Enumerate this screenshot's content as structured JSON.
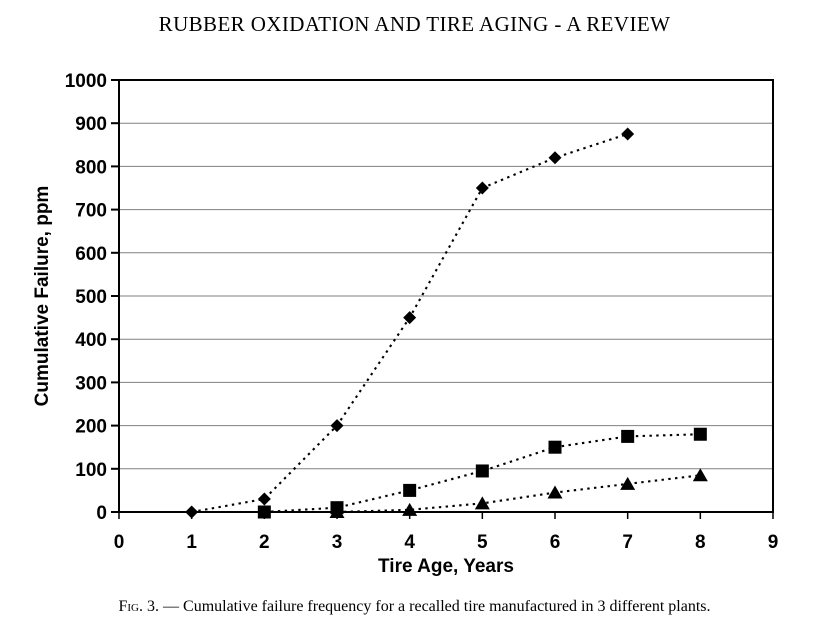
{
  "page": {
    "title": "RUBBER OXIDATION AND TIRE AGING - A REVIEW"
  },
  "caption": {
    "label": "Fig. 3.",
    "separator": "—",
    "text": "Cumulative failure frequency for a recalled tire manufactured in 3 different plants."
  },
  "chart_data": {
    "type": "line",
    "title": "",
    "xlabel": "Tire Age, Years",
    "ylabel": "Cumulative Failure, ppm",
    "xlim": [
      0,
      9
    ],
    "ylim": [
      0,
      1000
    ],
    "x_ticks": [
      0,
      1,
      2,
      3,
      4,
      5,
      6,
      7,
      8,
      9
    ],
    "y_ticks": [
      0,
      100,
      200,
      300,
      400,
      500,
      600,
      700,
      800,
      900,
      1000
    ],
    "grid": "horizontal",
    "legend": "none",
    "line_style": "dotted",
    "colors": {
      "marker": "#000000",
      "line": "#000000",
      "grid": "#808080",
      "axis": "#000000",
      "background": "#ffffff"
    },
    "series": [
      {
        "name": "plant-1-diamond",
        "marker": "diamond",
        "points": [
          [
            1,
            0
          ],
          [
            2,
            30
          ],
          [
            3,
            200
          ],
          [
            4,
            450
          ],
          [
            5,
            750
          ],
          [
            6,
            820
          ],
          [
            7,
            875
          ]
        ]
      },
      {
        "name": "plant-2-square",
        "marker": "square",
        "points": [
          [
            2,
            0
          ],
          [
            3,
            10
          ],
          [
            4,
            50
          ],
          [
            5,
            95
          ],
          [
            6,
            150
          ],
          [
            7,
            175
          ],
          [
            8,
            180
          ]
        ]
      },
      {
        "name": "plant-3-triangle",
        "marker": "triangle",
        "points": [
          [
            3,
            0
          ],
          [
            4,
            5
          ],
          [
            5,
            20
          ],
          [
            6,
            45
          ],
          [
            7,
            65
          ],
          [
            8,
            85
          ]
        ]
      }
    ]
  }
}
